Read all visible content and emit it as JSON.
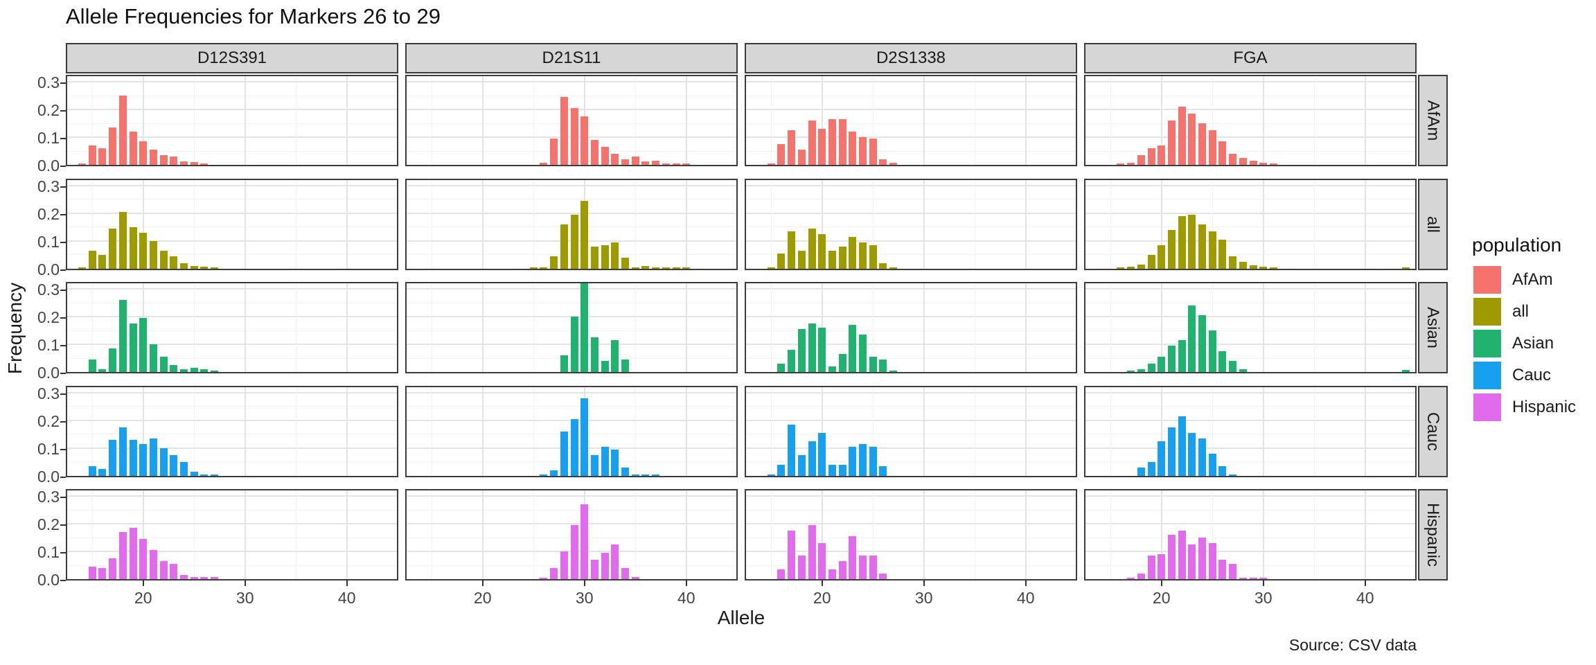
{
  "title": "Allele Frequencies for Markers 26 to 29",
  "caption": "Source: CSV data",
  "y_axis": {
    "label": "Frequency",
    "ticks": [
      "0.0",
      "0.1",
      "0.2",
      "0.3"
    ]
  },
  "x_axis": {
    "label": "Allele",
    "ticks": [
      "20",
      "30",
      "40"
    ]
  },
  "legend": {
    "title": "population",
    "items": [
      {
        "label": "AfAm",
        "color": "#F4736D"
      },
      {
        "label": "all",
        "color": "#9D9B00"
      },
      {
        "label": "Asian",
        "color": "#1FB36F"
      },
      {
        "label": "Cauc",
        "color": "#18A0F0"
      },
      {
        "label": "Hispanic",
        "color": "#E16BEC"
      }
    ]
  },
  "chart_data": {
    "type": "bar",
    "title": "Allele Frequencies for Markers 26 to 29",
    "xlabel": "Allele",
    "ylabel": "Frequency",
    "facet_columns": [
      "D12S391",
      "D21S11",
      "D2S1338",
      "FGA"
    ],
    "facet_rows": [
      "AfAm",
      "all",
      "Asian",
      "Cauc",
      "Hispanic"
    ],
    "x_ticks": [
      20,
      30,
      40
    ],
    "x_minor_gridlines": [
      15,
      25,
      35
    ],
    "y_ticks": [
      0.0,
      0.1,
      0.2,
      0.3
    ],
    "y_minor_gridlines": [
      0.05,
      0.15,
      0.25
    ],
    "x_range": [
      12.4,
      45
    ],
    "y_range": [
      0,
      0.33
    ],
    "legend_position": "right",
    "grid": true,
    "panels": [
      {
        "marker": "D12S391",
        "population": "AfAm",
        "bars": [
          [
            14,
            0.005
          ],
          [
            15,
            0.07
          ],
          [
            16,
            0.06
          ],
          [
            17,
            0.135
          ],
          [
            18,
            0.25
          ],
          [
            19,
            0.12
          ],
          [
            20,
            0.085
          ],
          [
            21,
            0.055
          ],
          [
            22,
            0.035
          ],
          [
            23,
            0.03
          ],
          [
            24,
            0.012
          ],
          [
            25,
            0.01
          ],
          [
            26,
            0.004
          ]
        ]
      },
      {
        "marker": "D21S11",
        "population": "AfAm",
        "bars": [
          [
            26,
            0.008
          ],
          [
            27,
            0.095
          ],
          [
            28,
            0.245
          ],
          [
            29,
            0.205
          ],
          [
            30,
            0.175
          ],
          [
            31,
            0.09
          ],
          [
            32,
            0.065
          ],
          [
            33,
            0.04
          ],
          [
            34,
            0.02
          ],
          [
            35,
            0.03
          ],
          [
            36,
            0.012
          ],
          [
            37,
            0.015
          ],
          [
            38,
            0.005
          ],
          [
            39,
            0.004
          ],
          [
            40,
            0.004
          ]
        ]
      },
      {
        "marker": "D2S1338",
        "population": "AfAm",
        "bars": [
          [
            15,
            0.005
          ],
          [
            16,
            0.075
          ],
          [
            17,
            0.125
          ],
          [
            18,
            0.055
          ],
          [
            19,
            0.16
          ],
          [
            20,
            0.13
          ],
          [
            21,
            0.165
          ],
          [
            22,
            0.165
          ],
          [
            23,
            0.12
          ],
          [
            24,
            0.1
          ],
          [
            25,
            0.095
          ],
          [
            26,
            0.02
          ],
          [
            27,
            0.008
          ]
        ]
      },
      {
        "marker": "FGA",
        "population": "AfAm",
        "bars": [
          [
            16,
            0.005
          ],
          [
            17,
            0.008
          ],
          [
            18,
            0.035
          ],
          [
            19,
            0.06
          ],
          [
            20,
            0.07
          ],
          [
            21,
            0.16
          ],
          [
            22,
            0.21
          ],
          [
            23,
            0.185
          ],
          [
            24,
            0.15
          ],
          [
            25,
            0.125
          ],
          [
            26,
            0.085
          ],
          [
            27,
            0.04
          ],
          [
            28,
            0.025
          ],
          [
            29,
            0.015
          ],
          [
            30,
            0.008
          ],
          [
            31,
            0.005
          ]
        ]
      },
      {
        "marker": "D12S391",
        "population": "all",
        "bars": [
          [
            14,
            0.004
          ],
          [
            15,
            0.065
          ],
          [
            16,
            0.05
          ],
          [
            17,
            0.145
          ],
          [
            18,
            0.205
          ],
          [
            19,
            0.15
          ],
          [
            20,
            0.13
          ],
          [
            21,
            0.1
          ],
          [
            22,
            0.065
          ],
          [
            23,
            0.045
          ],
          [
            24,
            0.02
          ],
          [
            25,
            0.01
          ],
          [
            26,
            0.006
          ],
          [
            27,
            0.004
          ]
        ]
      },
      {
        "marker": "D21S11",
        "population": "all",
        "bars": [
          [
            25,
            0.003
          ],
          [
            26,
            0.004
          ],
          [
            27,
            0.045
          ],
          [
            28,
            0.16
          ],
          [
            29,
            0.195
          ],
          [
            30,
            0.245
          ],
          [
            31,
            0.08
          ],
          [
            32,
            0.085
          ],
          [
            33,
            0.095
          ],
          [
            34,
            0.04
          ],
          [
            35,
            0.005
          ],
          [
            36,
            0.01
          ],
          [
            37,
            0.004
          ],
          [
            38,
            0.004
          ],
          [
            39,
            0.003
          ],
          [
            40,
            0.003
          ]
        ]
      },
      {
        "marker": "D2S1338",
        "population": "all",
        "bars": [
          [
            15,
            0.005
          ],
          [
            16,
            0.055
          ],
          [
            17,
            0.135
          ],
          [
            18,
            0.065
          ],
          [
            19,
            0.145
          ],
          [
            20,
            0.125
          ],
          [
            21,
            0.065
          ],
          [
            22,
            0.08
          ],
          [
            23,
            0.115
          ],
          [
            24,
            0.095
          ],
          [
            25,
            0.085
          ],
          [
            26,
            0.02
          ],
          [
            27,
            0.005
          ]
        ]
      },
      {
        "marker": "FGA",
        "population": "all",
        "bars": [
          [
            16,
            0.004
          ],
          [
            17,
            0.006
          ],
          [
            18,
            0.015
          ],
          [
            19,
            0.05
          ],
          [
            20,
            0.085
          ],
          [
            21,
            0.14
          ],
          [
            22,
            0.19
          ],
          [
            23,
            0.195
          ],
          [
            24,
            0.16
          ],
          [
            25,
            0.135
          ],
          [
            26,
            0.105
          ],
          [
            27,
            0.045
          ],
          [
            28,
            0.025
          ],
          [
            29,
            0.012
          ],
          [
            30,
            0.006
          ],
          [
            31,
            0.004
          ],
          [
            44,
            0.003
          ]
        ]
      },
      {
        "marker": "D12S391",
        "population": "Asian",
        "bars": [
          [
            15,
            0.045
          ],
          [
            16,
            0.01
          ],
          [
            17,
            0.085
          ],
          [
            18,
            0.26
          ],
          [
            19,
            0.175
          ],
          [
            20,
            0.195
          ],
          [
            21,
            0.1
          ],
          [
            22,
            0.055
          ],
          [
            23,
            0.025
          ],
          [
            24,
            0.01
          ],
          [
            25,
            0.015
          ],
          [
            26,
            0.01
          ],
          [
            27,
            0.005
          ]
        ]
      },
      {
        "marker": "D21S11",
        "population": "Asian",
        "bars": [
          [
            28,
            0.06
          ],
          [
            29,
            0.2
          ],
          [
            30,
            0.33
          ],
          [
            31,
            0.125
          ],
          [
            32,
            0.04
          ],
          [
            33,
            0.115
          ],
          [
            34,
            0.045
          ]
        ]
      },
      {
        "marker": "D2S1338",
        "population": "Asian",
        "bars": [
          [
            16,
            0.03
          ],
          [
            17,
            0.08
          ],
          [
            18,
            0.155
          ],
          [
            19,
            0.175
          ],
          [
            20,
            0.16
          ],
          [
            21,
            0.02
          ],
          [
            22,
            0.065
          ],
          [
            23,
            0.17
          ],
          [
            24,
            0.135
          ],
          [
            25,
            0.055
          ],
          [
            26,
            0.045
          ],
          [
            27,
            0.005
          ]
        ]
      },
      {
        "marker": "FGA",
        "population": "Asian",
        "bars": [
          [
            17,
            0.005
          ],
          [
            18,
            0.01
          ],
          [
            19,
            0.03
          ],
          [
            20,
            0.055
          ],
          [
            21,
            0.095
          ],
          [
            22,
            0.115
          ],
          [
            23,
            0.24
          ],
          [
            24,
            0.205
          ],
          [
            25,
            0.15
          ],
          [
            26,
            0.075
          ],
          [
            27,
            0.04
          ],
          [
            28,
            0.01
          ],
          [
            44,
            0.008
          ]
        ]
      },
      {
        "marker": "D12S391",
        "population": "Cauc",
        "bars": [
          [
            15,
            0.035
          ],
          [
            16,
            0.025
          ],
          [
            17,
            0.13
          ],
          [
            18,
            0.175
          ],
          [
            19,
            0.13
          ],
          [
            20,
            0.115
          ],
          [
            21,
            0.135
          ],
          [
            22,
            0.1
          ],
          [
            23,
            0.075
          ],
          [
            24,
            0.05
          ],
          [
            25,
            0.015
          ],
          [
            26,
            0.005
          ],
          [
            27,
            0.004
          ]
        ]
      },
      {
        "marker": "D21S11",
        "population": "Cauc",
        "bars": [
          [
            26,
            0.003
          ],
          [
            27,
            0.02
          ],
          [
            28,
            0.16
          ],
          [
            29,
            0.205
          ],
          [
            30,
            0.28
          ],
          [
            31,
            0.075
          ],
          [
            32,
            0.105
          ],
          [
            33,
            0.095
          ],
          [
            34,
            0.03
          ],
          [
            35,
            0.004
          ],
          [
            36,
            0.004
          ],
          [
            37,
            0.003
          ]
        ]
      },
      {
        "marker": "D2S1338",
        "population": "Cauc",
        "bars": [
          [
            15,
            0.005
          ],
          [
            16,
            0.04
          ],
          [
            17,
            0.185
          ],
          [
            18,
            0.075
          ],
          [
            19,
            0.125
          ],
          [
            20,
            0.155
          ],
          [
            21,
            0.04
          ],
          [
            22,
            0.04
          ],
          [
            23,
            0.105
          ],
          [
            24,
            0.115
          ],
          [
            25,
            0.105
          ],
          [
            26,
            0.035
          ]
        ]
      },
      {
        "marker": "FGA",
        "population": "Cauc",
        "bars": [
          [
            18,
            0.03
          ],
          [
            19,
            0.05
          ],
          [
            20,
            0.125
          ],
          [
            21,
            0.175
          ],
          [
            22,
            0.215
          ],
          [
            23,
            0.155
          ],
          [
            24,
            0.135
          ],
          [
            25,
            0.08
          ],
          [
            26,
            0.035
          ],
          [
            27,
            0.005
          ]
        ]
      },
      {
        "marker": "D12S391",
        "population": "Hispanic",
        "bars": [
          [
            15,
            0.045
          ],
          [
            16,
            0.04
          ],
          [
            17,
            0.075
          ],
          [
            18,
            0.17
          ],
          [
            19,
            0.185
          ],
          [
            20,
            0.145
          ],
          [
            21,
            0.105
          ],
          [
            22,
            0.065
          ],
          [
            23,
            0.055
          ],
          [
            24,
            0.015
          ],
          [
            25,
            0.008
          ],
          [
            26,
            0.008
          ],
          [
            27,
            0.008
          ]
        ]
      },
      {
        "marker": "D21S11",
        "population": "Hispanic",
        "bars": [
          [
            26,
            0.005
          ],
          [
            27,
            0.04
          ],
          [
            28,
            0.1
          ],
          [
            29,
            0.195
          ],
          [
            30,
            0.27
          ],
          [
            31,
            0.07
          ],
          [
            32,
            0.095
          ],
          [
            33,
            0.125
          ],
          [
            34,
            0.04
          ],
          [
            35,
            0.008
          ]
        ]
      },
      {
        "marker": "D2S1338",
        "population": "Hispanic",
        "bars": [
          [
            16,
            0.035
          ],
          [
            17,
            0.175
          ],
          [
            18,
            0.085
          ],
          [
            19,
            0.195
          ],
          [
            20,
            0.13
          ],
          [
            21,
            0.035
          ],
          [
            22,
            0.065
          ],
          [
            23,
            0.155
          ],
          [
            24,
            0.085
          ],
          [
            25,
            0.085
          ],
          [
            26,
            0.02
          ]
        ]
      },
      {
        "marker": "FGA",
        "population": "Hispanic",
        "bars": [
          [
            17,
            0.005
          ],
          [
            18,
            0.02
          ],
          [
            19,
            0.085
          ],
          [
            20,
            0.09
          ],
          [
            21,
            0.16
          ],
          [
            22,
            0.175
          ],
          [
            23,
            0.125
          ],
          [
            24,
            0.15
          ],
          [
            25,
            0.13
          ],
          [
            26,
            0.07
          ],
          [
            27,
            0.055
          ],
          [
            28,
            0.005
          ],
          [
            29,
            0.004
          ],
          [
            30,
            0.004
          ]
        ]
      }
    ]
  }
}
